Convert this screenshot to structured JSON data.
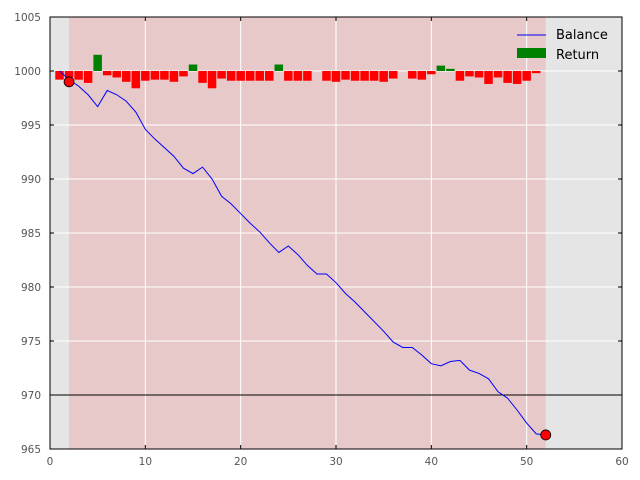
{
  "chart_data": {
    "type": "line",
    "title": "",
    "xlabel": "",
    "ylabel": "",
    "xlim": [
      0,
      60
    ],
    "ylim": [
      965,
      1005
    ],
    "xticks": [
      "0",
      "10",
      "20",
      "30",
      "40",
      "50",
      "60"
    ],
    "yticks": [
      "965",
      "970",
      "975",
      "980",
      "985",
      "990",
      "995",
      "1000",
      "1005"
    ],
    "grid": true,
    "legend_position": "top-right",
    "background_color": "#e5e5e5",
    "shaded_region": {
      "x_start": 2,
      "x_end": 52,
      "color": "#ff0000",
      "opacity": 0.12
    },
    "reference_line": {
      "y": 970,
      "color": "#000000"
    },
    "series": [
      {
        "name": "Balance",
        "kind": "line",
        "color": "#0000ff",
        "x": [
          1,
          2,
          3,
          4,
          5,
          6,
          7,
          8,
          9,
          10,
          11,
          12,
          13,
          14,
          15,
          16,
          17,
          18,
          19,
          20,
          21,
          22,
          23,
          24,
          25,
          26,
          27,
          28,
          29,
          30,
          31,
          32,
          33,
          34,
          35,
          36,
          37,
          38,
          39,
          40,
          41,
          42,
          43,
          44,
          45,
          46,
          47,
          48,
          49,
          50,
          51,
          52
        ],
        "values": [
          1000.0,
          999.2,
          998.6,
          997.8,
          996.7,
          998.2,
          997.8,
          997.2,
          996.2,
          994.6,
          993.7,
          992.9,
          992.1,
          991.0,
          990.5,
          991.1,
          990.0,
          988.4,
          987.7,
          986.8,
          985.9,
          985.1,
          984.1,
          983.2,
          983.8,
          983.0,
          982.0,
          981.2,
          981.2,
          980.4,
          979.4,
          978.6,
          977.7,
          976.8,
          975.9,
          974.9,
          974.4,
          974.4,
          973.7,
          972.9,
          972.7,
          973.1,
          973.2,
          972.3,
          972.0,
          971.5,
          970.3,
          969.7,
          968.6,
          967.4,
          966.4,
          966.3
        ]
      },
      {
        "name": "Return",
        "kind": "bar",
        "color": "#008000",
        "negative_color": "#ff0000",
        "x": [
          1,
          2,
          3,
          4,
          5,
          6,
          7,
          8,
          9,
          10,
          11,
          12,
          13,
          14,
          15,
          16,
          17,
          18,
          19,
          20,
          21,
          22,
          23,
          24,
          25,
          26,
          27,
          28,
          29,
          30,
          31,
          32,
          33,
          34,
          35,
          36,
          37,
          38,
          39,
          40,
          41,
          42,
          43,
          44,
          45,
          46,
          47,
          48,
          49,
          50,
          51,
          52
        ],
        "values": [
          -0.8,
          -0.6,
          -0.8,
          -1.1,
          1.5,
          -0.4,
          -0.6,
          -1.0,
          -1.6,
          -0.9,
          -0.8,
          -0.8,
          -1.0,
          -0.5,
          0.6,
          -1.1,
          -1.6,
          -0.7,
          -0.9,
          -0.9,
          -0.9,
          -0.9,
          -0.9,
          0.6,
          -0.9,
          -0.9,
          -0.9,
          0.0,
          -0.9,
          -1.0,
          -0.8,
          -0.9,
          -0.9,
          -0.9,
          -1.0,
          -0.7,
          0.0,
          -0.7,
          -0.8,
          -0.3,
          0.5,
          0.2,
          -0.9,
          -0.5,
          -0.6,
          -1.2,
          -0.6,
          -1.1,
          -1.2,
          -0.9,
          -0.2,
          0.0
        ]
      }
    ],
    "markers": [
      {
        "x": 2,
        "y": 999.0,
        "color": "#ff0000"
      },
      {
        "x": 52,
        "y": 966.3,
        "color": "#ff0000"
      }
    ]
  }
}
